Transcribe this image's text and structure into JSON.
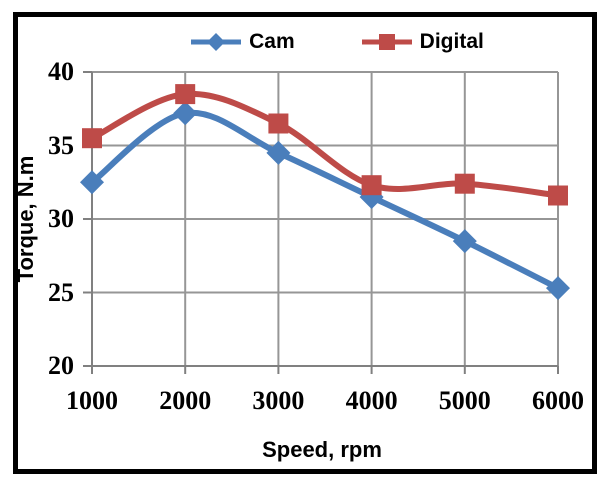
{
  "chart_data": {
    "type": "line",
    "title": "",
    "xlabel": "Speed, rpm",
    "ylabel": "Torque, N.m",
    "x": [
      1000,
      2000,
      3000,
      4000,
      5000,
      6000
    ],
    "xticks": [
      1000,
      2000,
      3000,
      4000,
      5000,
      6000
    ],
    "yticks": [
      40,
      35,
      30,
      25,
      20
    ],
    "ylim": [
      20,
      40
    ],
    "xlim": [
      1000,
      6000
    ],
    "grid": true,
    "smooth": true,
    "legend_position": "top",
    "series": [
      {
        "name": "Cam",
        "color": "#4A7EBB",
        "marker": "diamond",
        "values": [
          32.5,
          37.2,
          34.5,
          31.5,
          28.5,
          25.3
        ]
      },
      {
        "name": "Digital",
        "color": "#BE4B48",
        "marker": "square",
        "values": [
          35.5,
          38.5,
          36.5,
          32.3,
          32.4,
          31.6
        ]
      }
    ]
  },
  "colors": {
    "background": "#FFFFFF",
    "frame": "#000000",
    "gridline": "#969696",
    "axis": "#808080",
    "text": "#000000"
  }
}
